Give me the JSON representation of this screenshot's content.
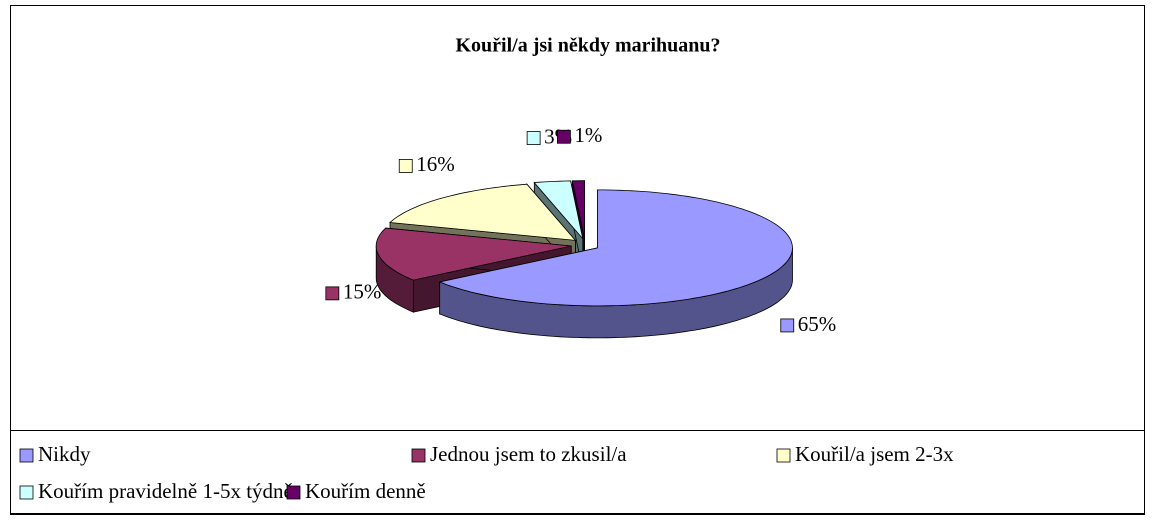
{
  "chart_data": {
    "type": "pie",
    "title": "Kouřil/a jsi někdy marihuanu?",
    "categories": [
      "Nikdy",
      "Jednou jsem to zkusil/a",
      "Kouřil/a jsem 2-3x",
      "Kouřím pravidelně 1-5x týdně",
      "Kouřím denně"
    ],
    "values": [
      65,
      15,
      16,
      3,
      1
    ],
    "value_labels": [
      "65%",
      "15%",
      "16%",
      "3%",
      "1%"
    ],
    "colors": [
      "#9999ff",
      "#993366",
      "#ffffcc",
      "#ccffff",
      "#660066"
    ],
    "legend": "bottom"
  }
}
